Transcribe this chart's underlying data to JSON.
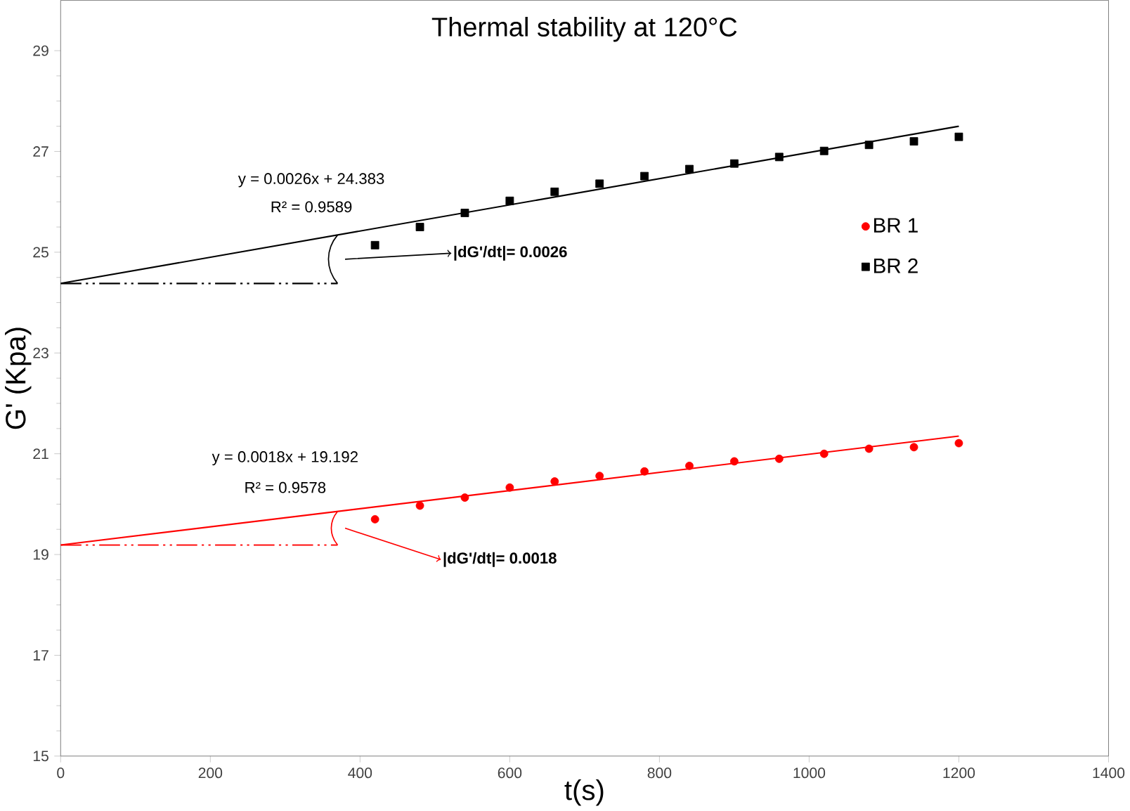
{
  "chart_data": {
    "type": "scatter",
    "title": "Thermal stability at 120°C",
    "xlabel": "t(s)",
    "ylabel": "G' (Kpa)",
    "xlim": [
      0,
      1400
    ],
    "xticks": [
      0,
      200,
      400,
      600,
      800,
      1000,
      1200,
      1400
    ],
    "ylim": [
      15,
      30
    ],
    "yticks": [
      15,
      17,
      19,
      21,
      23,
      25,
      27,
      29
    ],
    "grid": false,
    "legend": "right",
    "series": [
      {
        "name": "BR 1",
        "marker": "circle",
        "color": "#ff0000",
        "x": [
          420,
          480,
          540,
          600,
          660,
          720,
          780,
          840,
          900,
          960,
          1020,
          1080,
          1140,
          1200
        ],
        "values": [
          19.7,
          19.97,
          20.13,
          20.33,
          20.45,
          20.56,
          20.65,
          20.76,
          20.85,
          20.9,
          21.0,
          21.1,
          21.13,
          21.21
        ]
      },
      {
        "name": "BR 2",
        "marker": "square",
        "color": "#000000",
        "x": [
          420,
          480,
          540,
          600,
          660,
          720,
          780,
          840,
          900,
          960,
          1020,
          1080,
          1140,
          1200
        ],
        "values": [
          25.14,
          25.5,
          25.78,
          26.02,
          26.2,
          26.36,
          26.51,
          26.65,
          26.76,
          26.89,
          27.01,
          27.13,
          27.2,
          27.29
        ]
      },
      {
        "type": "line",
        "marker": "none",
        "line_style": "solid",
        "color": "#ff0000",
        "x": [
          0,
          1200
        ],
        "values": [
          19.19,
          21.35
        ]
      },
      {
        "type": "line",
        "marker": "none",
        "line_style": "solid",
        "color": "#000000",
        "x": [
          0,
          1200
        ],
        "values": [
          24.38,
          27.5
        ]
      },
      {
        "type": "line",
        "marker": "none",
        "line_style": "dashed",
        "color": "#ff0000",
        "x": [
          0,
          370
        ],
        "values": [
          19.19,
          19.19
        ]
      },
      {
        "type": "line",
        "marker": "none",
        "line_style": "dashed",
        "color": "#000000",
        "x": [
          0,
          370
        ],
        "values": [
          24.38,
          24.38
        ]
      }
    ],
    "annotations": [
      "y = 0.0026x + 24.383",
      "R² = 0.9589",
      "**|dG'/dt|= 0.0026**",
      "y = 0.0018x + 19.192",
      "R² = 0.9578",
      "**|dG'/dt|= 0.0018**"
    ]
  }
}
